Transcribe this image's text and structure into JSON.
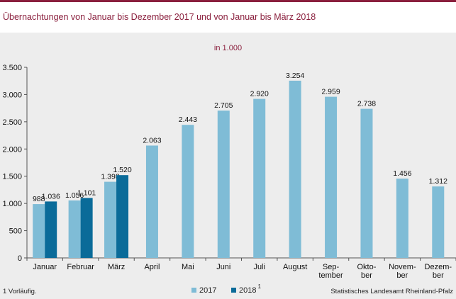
{
  "title": "Übernachtungen von Januar bis Dezember 2017 und von Januar bis März 2018",
  "colors": {
    "accent": "#8a1f3d",
    "s2017": "#7fbcd6",
    "s2018": "#0a6b99"
  },
  "chart_data": {
    "type": "bar",
    "subtitle": "in 1.000",
    "categories": [
      "Januar",
      "Februar",
      "März",
      "April",
      "Mai",
      "Juni",
      "Juli",
      "August",
      "Sep-\ntember",
      "Okto-\nber",
      "Novem-\nber",
      "Dezem-\nber"
    ],
    "series": [
      {
        "name": "2017",
        "values": [
          988,
          1056,
          1398,
          2063,
          2443,
          2705,
          2920,
          3254,
          2959,
          2738,
          1456,
          1312
        ],
        "labels": [
          "988",
          "1.056",
          "1.398",
          "2.063",
          "2.443",
          "2.705",
          "2.920",
          "3.254",
          "2.959",
          "2.738",
          "1.456",
          "1.312"
        ]
      },
      {
        "name": "2018",
        "footnote_mark": "1",
        "values": [
          1036,
          1101,
          1520,
          null,
          null,
          null,
          null,
          null,
          null,
          null,
          null,
          null
        ],
        "labels": [
          "1.036",
          "1.101",
          "1.520",
          "",
          "",
          "",
          "",
          "",
          "",
          "",
          "",
          ""
        ]
      }
    ],
    "yticks": [
      0,
      500,
      1000,
      1500,
      2000,
      2500,
      3000,
      3500
    ],
    "ytick_labels": [
      "0",
      "500",
      "1.000",
      "1.500",
      "2.000",
      "2.500",
      "3.000",
      "3.500"
    ],
    "ylim": [
      0,
      3500
    ],
    "grid": false,
    "legend": "bottom"
  },
  "footnote": "1 Vorläufig.",
  "source": "Statistisches Landesamt Rheinland-Pfalz"
}
